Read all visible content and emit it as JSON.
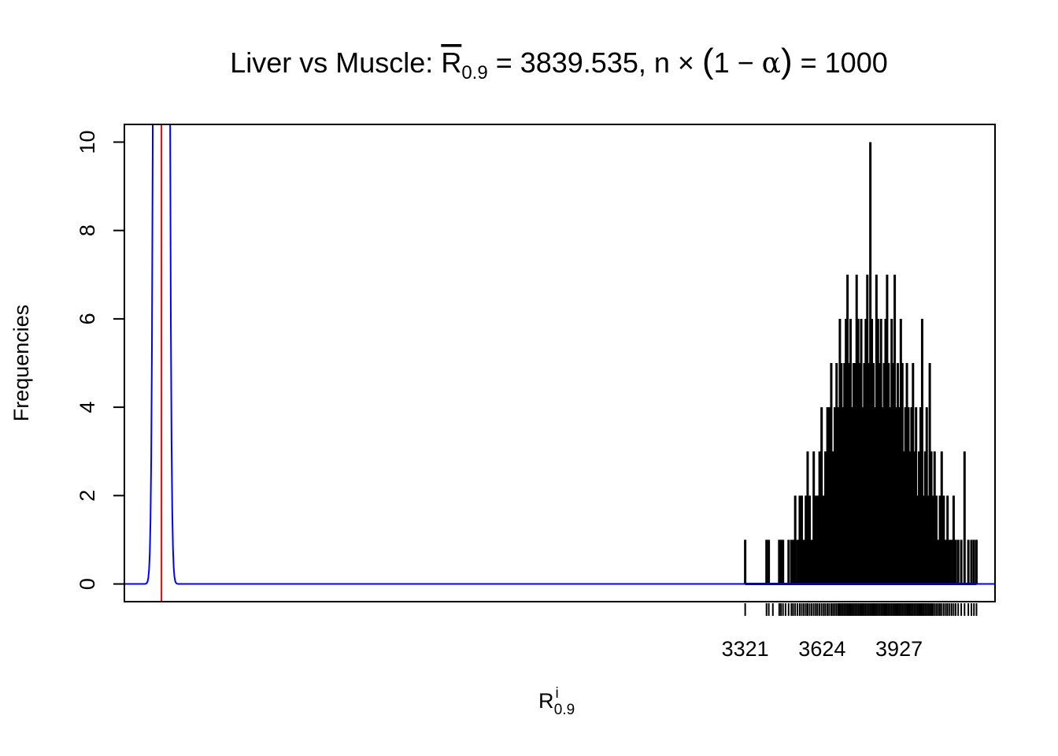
{
  "chart_data": {
    "type": "histogram",
    "title": {
      "prefix": "Liver vs Muscle: ",
      "symbol": "R",
      "symbol_sub": "0.9",
      "equals_value": " = 3839.535, n",
      "times": " × ",
      "open_paren": "(",
      "one_minus": "1 − ",
      "alpha": "α",
      "close_paren": ")",
      "equals_n": " = 1000"
    },
    "ylabel": "Frequencies",
    "xlabel": {
      "symbol": "R",
      "sup": "i",
      "sub": "0.9"
    },
    "y_ticks": [
      {
        "value": 0,
        "label": "0"
      },
      {
        "value": 2,
        "label": "2"
      },
      {
        "value": 4,
        "label": "4"
      },
      {
        "value": 6,
        "label": "6"
      },
      {
        "value": 8,
        "label": "8"
      },
      {
        "value": 10,
        "label": "10"
      }
    ],
    "x_ticks": [
      {
        "value": 3321,
        "label": "3321"
      },
      {
        "value": 3624,
        "label": "3624"
      },
      {
        "value": 3927,
        "label": "3927"
      }
    ],
    "xlim": [
      876,
      4305
    ],
    "ylim": [
      -0.4,
      10.4
    ],
    "series_counts": {
      "x": [
        3321,
        3405,
        3414,
        3430,
        3455,
        3462,
        3470,
        3480,
        3492,
        3503,
        3510,
        3518,
        3527,
        3536,
        3544,
        3552,
        3560,
        3567,
        3575,
        3583,
        3591,
        3599,
        3606,
        3614,
        3622,
        3630,
        3637,
        3645,
        3652,
        3660,
        3667,
        3674,
        3681,
        3688,
        3694,
        3700,
        3706,
        3712,
        3718,
        3724,
        3730,
        3736,
        3742,
        3748,
        3754,
        3760,
        3766,
        3772,
        3778,
        3784,
        3790,
        3796,
        3802,
        3808,
        3814,
        3820,
        3826,
        3832,
        3838,
        3844,
        3850,
        3856,
        3862,
        3868,
        3874,
        3880,
        3886,
        3892,
        3898,
        3904,
        3910,
        3916,
        3922,
        3928,
        3934,
        3940,
        3946,
        3952,
        3958,
        3964,
        3970,
        3976,
        3982,
        3988,
        3994,
        4000,
        4006,
        4012,
        4018,
        4024,
        4030,
        4036,
        4042,
        4048,
        4054,
        4060,
        4067,
        4074,
        4081,
        4088,
        4095,
        4103,
        4111,
        4118,
        4126,
        4134,
        4142,
        4150,
        4160,
        4172,
        4185,
        4200,
        4212,
        4222,
        4232
      ],
      "y": [
        1,
        1,
        1,
        0,
        1,
        1,
        1,
        0,
        1,
        1,
        1,
        2,
        1,
        2,
        2,
        1,
        2,
        3,
        2,
        1,
        3,
        2,
        2,
        3,
        4,
        2,
        3,
        4,
        4,
        5,
        3,
        4,
        5,
        4,
        6,
        5,
        4,
        5,
        6,
        7,
        5,
        6,
        4,
        5,
        5,
        7,
        6,
        5,
        6,
        4,
        5,
        6,
        7,
        5,
        10,
        6,
        5,
        4,
        7,
        6,
        5,
        6,
        4,
        5,
        6,
        7,
        5,
        4,
        6,
        5,
        7,
        4,
        5,
        4,
        6,
        5,
        3,
        4,
        5,
        4,
        3,
        4,
        5,
        3,
        4,
        2,
        3,
        4,
        6,
        2,
        3,
        4,
        2,
        5,
        3,
        2,
        3,
        2,
        1,
        2,
        3,
        2,
        1,
        2,
        1,
        1,
        2,
        1,
        1,
        1,
        3,
        1,
        1,
        1,
        1
      ]
    },
    "null_density": {
      "mean": 1022,
      "sd": 13.2,
      "peak_frequency": 300
    },
    "reference_line_x": 1022,
    "colors": {
      "histogram": "#000000",
      "density": "#0000ff",
      "reference_line": "#ff0000",
      "frame": "#000000"
    }
  }
}
